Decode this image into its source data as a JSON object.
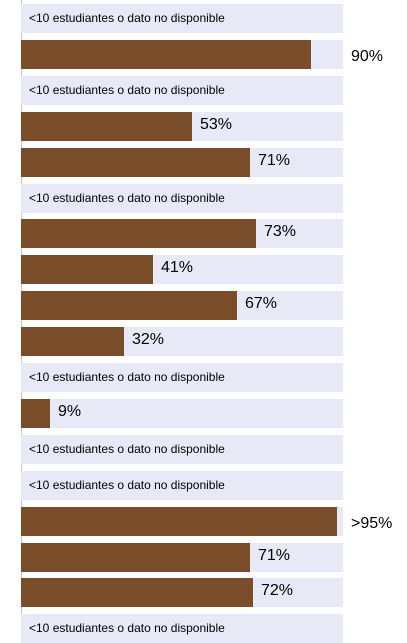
{
  "colors": {
    "bar": "#7a4d2b",
    "track": "#e7e9f7",
    "axis": "#c9c9c9"
  },
  "chart_data": {
    "type": "bar",
    "orientation": "horizontal",
    "xlim": [
      0,
      100
    ],
    "values": [
      null,
      90,
      null,
      53,
      71,
      null,
      73,
      41,
      67,
      32,
      null,
      9,
      null,
      null,
      98,
      71,
      72,
      null
    ],
    "labels": [
      "<10 estudiantes o dato no disponible",
      "90%",
      "<10 estudiantes o dato no disponible",
      "53%",
      "71%",
      "<10 estudiantes o dato no disponible",
      "73%",
      "41%",
      "67%",
      "32%",
      "<10 estudiantes o dato no disponible",
      "9%",
      "<10 estudiantes o dato no disponible",
      "<10 estudiantes o dato no disponible",
      ">95%",
      "71%",
      "72%",
      "<10 estudiantes o dato no disponible"
    ]
  }
}
